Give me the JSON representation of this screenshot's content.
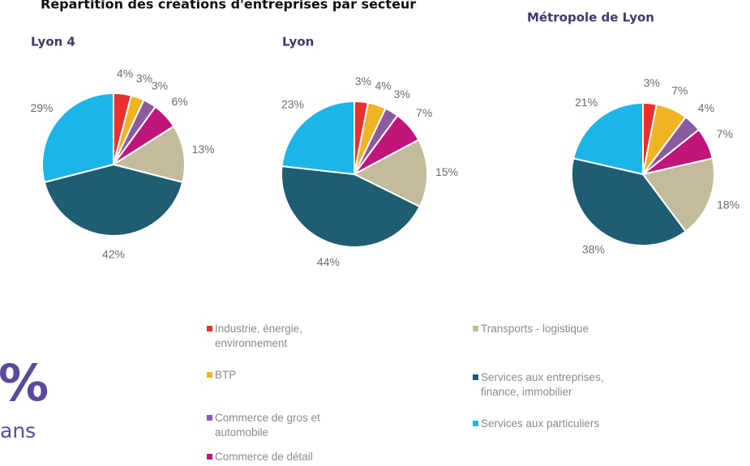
{
  "title": "Répartition des créations d'entreprises par secteur",
  "sectors": {
    "categories": [
      "Industrie, énergie, environnement",
      "BTP",
      "Commerce de gros et automobile",
      "Commerce de détail",
      "Transports - logistique",
      "Services aux entreprises, finance, immobilier",
      "Services aux particuliers"
    ],
    "colors": [
      "#e8312f",
      "#f0b323",
      "#8c5a9e",
      "#c0157a",
      "#c2bc9c",
      "#1f5d73",
      "#1cb5e8"
    ]
  },
  "chart_data": [
    {
      "type": "pie",
      "title": "Lyon 4",
      "values": [
        4,
        3,
        3,
        6,
        13,
        42,
        29
      ],
      "value_labels": [
        "4%",
        "3%",
        "3%",
        "6%",
        "13%",
        "42%",
        "29%"
      ]
    },
    {
      "type": "pie",
      "title": "Lyon",
      "values": [
        3,
        4,
        3,
        7,
        15,
        44,
        23
      ],
      "value_labels": [
        "3%",
        "4%",
        "3%",
        "7%",
        "15%",
        "44%",
        "23%"
      ]
    },
    {
      "type": "pie",
      "title": "Métropole de Lyon",
      "values": [
        3,
        7,
        4,
        7,
        18,
        38,
        21
      ],
      "value_labels": [
        "3%",
        "7%",
        "4%",
        "7%",
        "18%",
        "38%",
        "21%"
      ]
    }
  ],
  "side_text": {
    "big": "%",
    "small": "ans"
  }
}
